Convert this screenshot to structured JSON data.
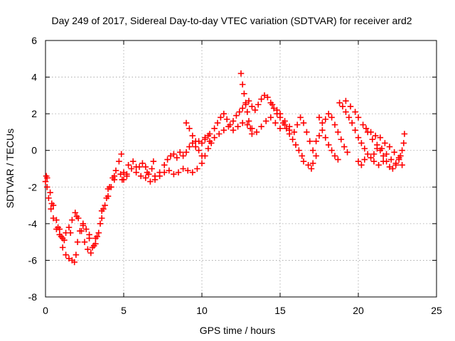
{
  "chart_data": {
    "type": "scatter",
    "title": "Day 249 of 2017, Sidereal Day-to-day VTEC variation (SDTVAR) for receiver ard2",
    "xlabel": "GPS time / hours",
    "ylabel": "SDTVAR / TECUs",
    "xlim": [
      0,
      25
    ],
    "ylim": [
      -8,
      6
    ],
    "xticks": [
      0,
      5,
      10,
      15,
      20,
      25
    ],
    "yticks": [
      -8,
      -6,
      -4,
      -2,
      0,
      2,
      4,
      6
    ],
    "grid": true,
    "marker": "plus",
    "series": [
      {
        "name": "SDTVAR",
        "color": "#ff0000",
        "points": [
          [
            0.0,
            -1.7
          ],
          [
            0.1,
            -2.0
          ],
          [
            0.2,
            -2.6
          ],
          [
            0.35,
            -3.2
          ],
          [
            0.5,
            -3.7
          ],
          [
            0.7,
            -4.3
          ],
          [
            0.9,
            -4.6
          ],
          [
            1.1,
            -4.8
          ],
          [
            1.3,
            -4.5
          ],
          [
            1.5,
            -4.2
          ],
          [
            1.7,
            -3.8
          ],
          [
            1.9,
            -3.4
          ],
          [
            2.1,
            -3.7
          ],
          [
            2.3,
            -4.4
          ],
          [
            2.5,
            -5.0
          ],
          [
            2.7,
            -5.4
          ],
          [
            2.9,
            -5.6
          ],
          [
            3.1,
            -5.2
          ],
          [
            3.3,
            -4.7
          ],
          [
            3.5,
            -4.0
          ],
          [
            3.7,
            -3.2
          ],
          [
            3.9,
            -2.6
          ],
          [
            4.1,
            -2.0
          ],
          [
            4.3,
            -1.5
          ],
          [
            4.5,
            -1.1
          ],
          [
            4.7,
            -0.6
          ],
          [
            4.85,
            -0.2
          ],
          [
            0.1,
            -1.5
          ],
          [
            0.3,
            -2.3
          ],
          [
            0.5,
            -3.0
          ],
          [
            0.7,
            -3.8
          ],
          [
            0.9,
            -4.3
          ],
          [
            1.0,
            -4.7
          ],
          [
            1.1,
            -5.3
          ],
          [
            1.3,
            -5.7
          ],
          [
            1.5,
            -5.9
          ],
          [
            1.7,
            -6.0
          ],
          [
            1.85,
            -6.1
          ],
          [
            1.95,
            -5.7
          ],
          [
            2.05,
            -5.0
          ],
          [
            2.2,
            -4.4
          ],
          [
            2.4,
            -4.1
          ],
          [
            2.6,
            -4.3
          ],
          [
            2.8,
            -4.8
          ],
          [
            3.0,
            -5.3
          ],
          [
            3.2,
            -5.1
          ],
          [
            3.4,
            -4.5
          ],
          [
            3.6,
            -3.7
          ],
          [
            3.8,
            -3.0
          ],
          [
            4.0,
            -2.5
          ],
          [
            4.2,
            -2.0
          ],
          [
            4.4,
            -1.6
          ],
          [
            0.05,
            -1.4
          ],
          [
            0.4,
            -2.9
          ],
          [
            0.8,
            -4.2
          ],
          [
            1.2,
            -4.9
          ],
          [
            1.6,
            -4.5
          ],
          [
            2.0,
            -3.6
          ],
          [
            2.4,
            -4.0
          ],
          [
            2.8,
            -4.6
          ],
          [
            3.2,
            -4.8
          ],
          [
            3.6,
            -3.3
          ],
          [
            4.0,
            -2.1
          ],
          [
            4.4,
            -1.4
          ],
          [
            4.8,
            -1.3
          ],
          [
            5.0,
            -1.6
          ],
          [
            5.2,
            -1.4
          ],
          [
            4.9,
            -1.6
          ],
          [
            5.2,
            -1.3
          ],
          [
            5.5,
            -1.0
          ],
          [
            5.8,
            -1.2
          ],
          [
            6.0,
            -0.9
          ],
          [
            6.2,
            -0.7
          ],
          [
            6.4,
            -0.9
          ],
          [
            6.6,
            -1.3
          ],
          [
            6.8,
            -1.0
          ],
          [
            6.9,
            -0.6
          ],
          [
            5.0,
            -1.2
          ],
          [
            5.3,
            -0.8
          ],
          [
            5.6,
            -0.6
          ],
          [
            5.8,
            -0.9
          ],
          [
            6.1,
            -1.4
          ],
          [
            6.4,
            -1.5
          ],
          [
            6.7,
            -1.7
          ],
          [
            6.5,
            -1.2
          ],
          [
            7.0,
            -1.4
          ],
          [
            7.3,
            -1.2
          ],
          [
            7.6,
            -0.8
          ],
          [
            7.8,
            -0.5
          ],
          [
            8.0,
            -0.3
          ],
          [
            8.2,
            -0.2
          ],
          [
            8.4,
            -0.4
          ],
          [
            8.6,
            -0.1
          ],
          [
            8.8,
            -0.3
          ],
          [
            9.0,
            -0.1
          ],
          [
            9.2,
            0.2
          ],
          [
            9.4,
            0.4
          ],
          [
            9.6,
            0.2
          ],
          [
            9.8,
            0.5
          ],
          [
            10.0,
            0.4
          ],
          [
            10.2,
            0.7
          ],
          [
            10.4,
            0.8
          ],
          [
            7.0,
            -1.6
          ],
          [
            7.3,
            -1.4
          ],
          [
            7.6,
            -1.2
          ],
          [
            7.9,
            -1.1
          ],
          [
            8.2,
            -1.3
          ],
          [
            8.5,
            -1.2
          ],
          [
            8.8,
            -1.0
          ],
          [
            9.1,
            -1.1
          ],
          [
            9.4,
            -1.2
          ],
          [
            9.7,
            -1.0
          ],
          [
            10.0,
            -0.7
          ],
          [
            10.2,
            -0.3
          ],
          [
            10.4,
            0.1
          ],
          [
            10.6,
            0.4
          ],
          [
            9.0,
            1.5
          ],
          [
            9.2,
            1.2
          ],
          [
            9.4,
            0.8
          ],
          [
            9.6,
            0.5
          ],
          [
            9.8,
            0.0
          ],
          [
            10.0,
            -0.3
          ],
          [
            10.2,
            0.6
          ],
          [
            10.5,
            0.9
          ],
          [
            10.8,
            1.2
          ],
          [
            11.0,
            1.5
          ],
          [
            11.2,
            1.8
          ],
          [
            11.4,
            2.0
          ],
          [
            11.6,
            1.7
          ],
          [
            11.8,
            1.4
          ],
          [
            12.0,
            1.6
          ],
          [
            12.2,
            1.9
          ],
          [
            12.4,
            2.1
          ],
          [
            12.6,
            2.3
          ],
          [
            12.8,
            2.5
          ],
          [
            13.0,
            2.7
          ],
          [
            13.2,
            2.4
          ],
          [
            13.4,
            2.2
          ],
          [
            13.6,
            2.5
          ],
          [
            13.8,
            2.8
          ],
          [
            14.0,
            3.0
          ],
          [
            14.2,
            2.9
          ],
          [
            14.4,
            2.6
          ],
          [
            14.6,
            2.3
          ],
          [
            14.8,
            2.0
          ],
          [
            10.5,
            0.5
          ],
          [
            10.8,
            0.7
          ],
          [
            11.1,
            0.9
          ],
          [
            11.4,
            1.1
          ],
          [
            11.7,
            1.3
          ],
          [
            12.0,
            1.1
          ],
          [
            12.3,
            1.3
          ],
          [
            12.6,
            1.5
          ],
          [
            12.9,
            1.4
          ],
          [
            13.2,
            1.2
          ],
          [
            13.5,
            1.0
          ],
          [
            13.8,
            1.3
          ],
          [
            14.1,
            1.6
          ],
          [
            14.4,
            1.8
          ],
          [
            14.7,
            1.5
          ],
          [
            15.0,
            1.2
          ],
          [
            15.3,
            1.4
          ],
          [
            15.6,
            1.1
          ],
          [
            12.5,
            4.2
          ],
          [
            12.6,
            3.6
          ],
          [
            12.7,
            3.1
          ],
          [
            12.8,
            2.6
          ],
          [
            12.9,
            2.1
          ],
          [
            13.0,
            1.6
          ],
          [
            13.1,
            1.2
          ],
          [
            13.2,
            0.9
          ],
          [
            14.5,
            2.5
          ],
          [
            14.8,
            2.2
          ],
          [
            15.0,
            1.8
          ],
          [
            15.2,
            1.5
          ],
          [
            15.4,
            1.2
          ],
          [
            15.6,
            0.9
          ],
          [
            15.8,
            0.6
          ],
          [
            16.0,
            0.3
          ],
          [
            16.2,
            0.0
          ],
          [
            16.4,
            -0.3
          ],
          [
            16.5,
            -0.6
          ],
          [
            15.0,
            2.0
          ],
          [
            15.3,
            1.6
          ],
          [
            15.6,
            1.3
          ],
          [
            15.9,
            1.0
          ],
          [
            16.1,
            1.4
          ],
          [
            16.3,
            1.8
          ],
          [
            16.5,
            1.5
          ],
          [
            16.7,
            1.0
          ],
          [
            16.9,
            0.5
          ],
          [
            17.1,
            0.0
          ],
          [
            17.3,
            -0.3
          ],
          [
            16.8,
            -0.8
          ],
          [
            17.0,
            -1.0
          ],
          [
            17.1,
            -0.7
          ],
          [
            17.3,
            0.5
          ],
          [
            17.5,
            0.8
          ],
          [
            17.7,
            1.1
          ],
          [
            17.9,
            0.7
          ],
          [
            18.1,
            0.3
          ],
          [
            18.3,
            0.0
          ],
          [
            18.5,
            -0.3
          ],
          [
            18.7,
            -0.5
          ],
          [
            17.5,
            1.8
          ],
          [
            17.7,
            1.5
          ],
          [
            17.9,
            1.7
          ],
          [
            18.1,
            2.0
          ],
          [
            18.3,
            1.8
          ],
          [
            18.5,
            1.4
          ],
          [
            18.7,
            1.0
          ],
          [
            18.9,
            0.6
          ],
          [
            19.1,
            0.2
          ],
          [
            19.3,
            -0.1
          ],
          [
            18.8,
            2.6
          ],
          [
            19.0,
            2.4
          ],
          [
            19.2,
            2.1
          ],
          [
            19.4,
            1.8
          ],
          [
            19.6,
            1.5
          ],
          [
            19.8,
            1.1
          ],
          [
            20.0,
            0.7
          ],
          [
            20.2,
            0.4
          ],
          [
            20.4,
            0.1
          ],
          [
            20.6,
            -0.2
          ],
          [
            20.8,
            -0.4
          ],
          [
            21.0,
            -0.2
          ],
          [
            21.2,
            0.1
          ],
          [
            21.4,
            0.0
          ],
          [
            21.6,
            -0.3
          ],
          [
            21.8,
            -0.6
          ],
          [
            22.0,
            -0.9
          ],
          [
            22.2,
            -1.0
          ],
          [
            22.4,
            -0.8
          ],
          [
            22.6,
            -0.5
          ],
          [
            22.8,
            0.0
          ],
          [
            19.2,
            2.7
          ],
          [
            19.5,
            2.4
          ],
          [
            19.8,
            2.1
          ],
          [
            20.0,
            1.8
          ],
          [
            20.3,
            1.4
          ],
          [
            20.6,
            1.0
          ],
          [
            20.9,
            0.6
          ],
          [
            21.2,
            0.3
          ],
          [
            21.5,
            0.1
          ],
          [
            21.8,
            -0.2
          ],
          [
            22.1,
            -0.5
          ],
          [
            22.4,
            -0.7
          ],
          [
            22.7,
            -0.3
          ],
          [
            22.9,
            0.4
          ],
          [
            22.95,
            0.9
          ],
          [
            20.5,
            1.2
          ],
          [
            20.8,
            1.0
          ],
          [
            21.1,
            0.8
          ],
          [
            21.4,
            0.7
          ],
          [
            21.7,
            0.4
          ],
          [
            22.0,
            0.2
          ],
          [
            22.3,
            -0.1
          ],
          [
            22.6,
            -0.4
          ],
          [
            22.8,
            -0.8
          ],
          [
            20.0,
            -0.6
          ],
          [
            20.2,
            -0.8
          ],
          [
            20.4,
            -0.5
          ],
          [
            21.0,
            -0.6
          ],
          [
            21.3,
            -0.8
          ],
          [
            21.6,
            -0.6
          ]
        ]
      }
    ]
  }
}
